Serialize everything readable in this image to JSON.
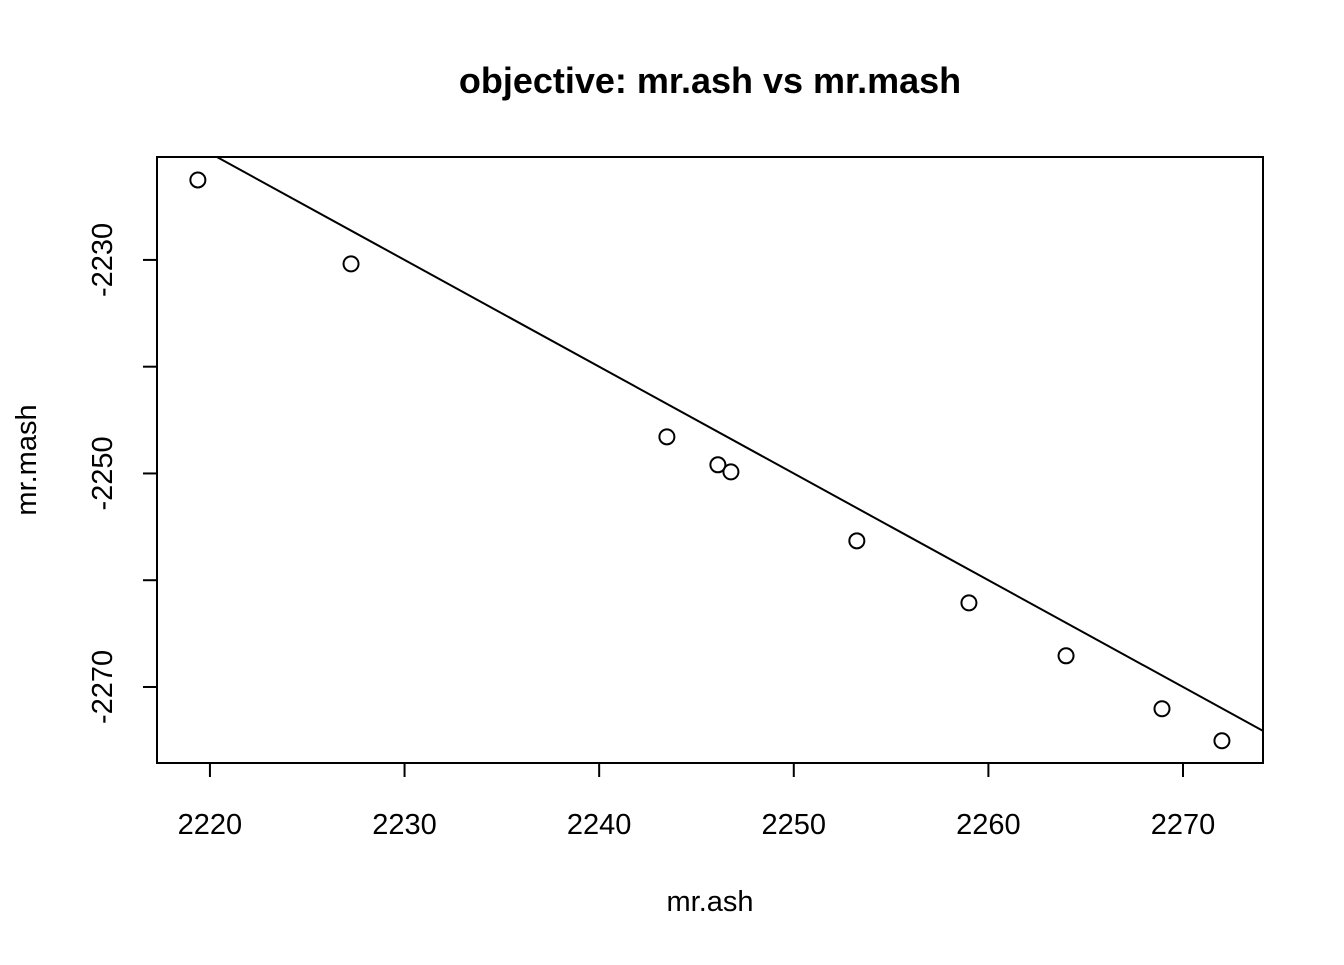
{
  "chart_data": {
    "type": "scatter",
    "title": "objective: mr.ash vs mr.mash",
    "x_label": "mr.ash",
    "y_label": "mr.mash",
    "series": [
      {
        "x": [
          2219.38,
          2227.25,
          2243.48,
          2246.1,
          2246.77,
          2253.24,
          2259.0,
          2263.99,
          2268.92,
          2272.0
        ],
        "values": [
          -2222.51,
          -2230.37,
          -2246.57,
          -2249.19,
          -2249.85,
          -2256.31,
          -2262.12,
          -2267.08,
          -2272.04,
          -2275.04
        ],
        "color": "#000000"
      }
    ],
    "reference_line": {
      "intercept": 0,
      "slope": -1,
      "color": "#000000"
    },
    "xlim": [
      2217.28,
      2274.11
    ],
    "ylim": [
      -2277.12,
      -2220.36
    ],
    "xticks": [
      2220,
      2230,
      2240,
      2250,
      2260,
      2270
    ],
    "yticks": [
      -2270,
      {
        "value": -2260,
        "label": null
      },
      -2250,
      {
        "value": -2240,
        "label": null
      },
      -2230
    ],
    "grid": false
  }
}
